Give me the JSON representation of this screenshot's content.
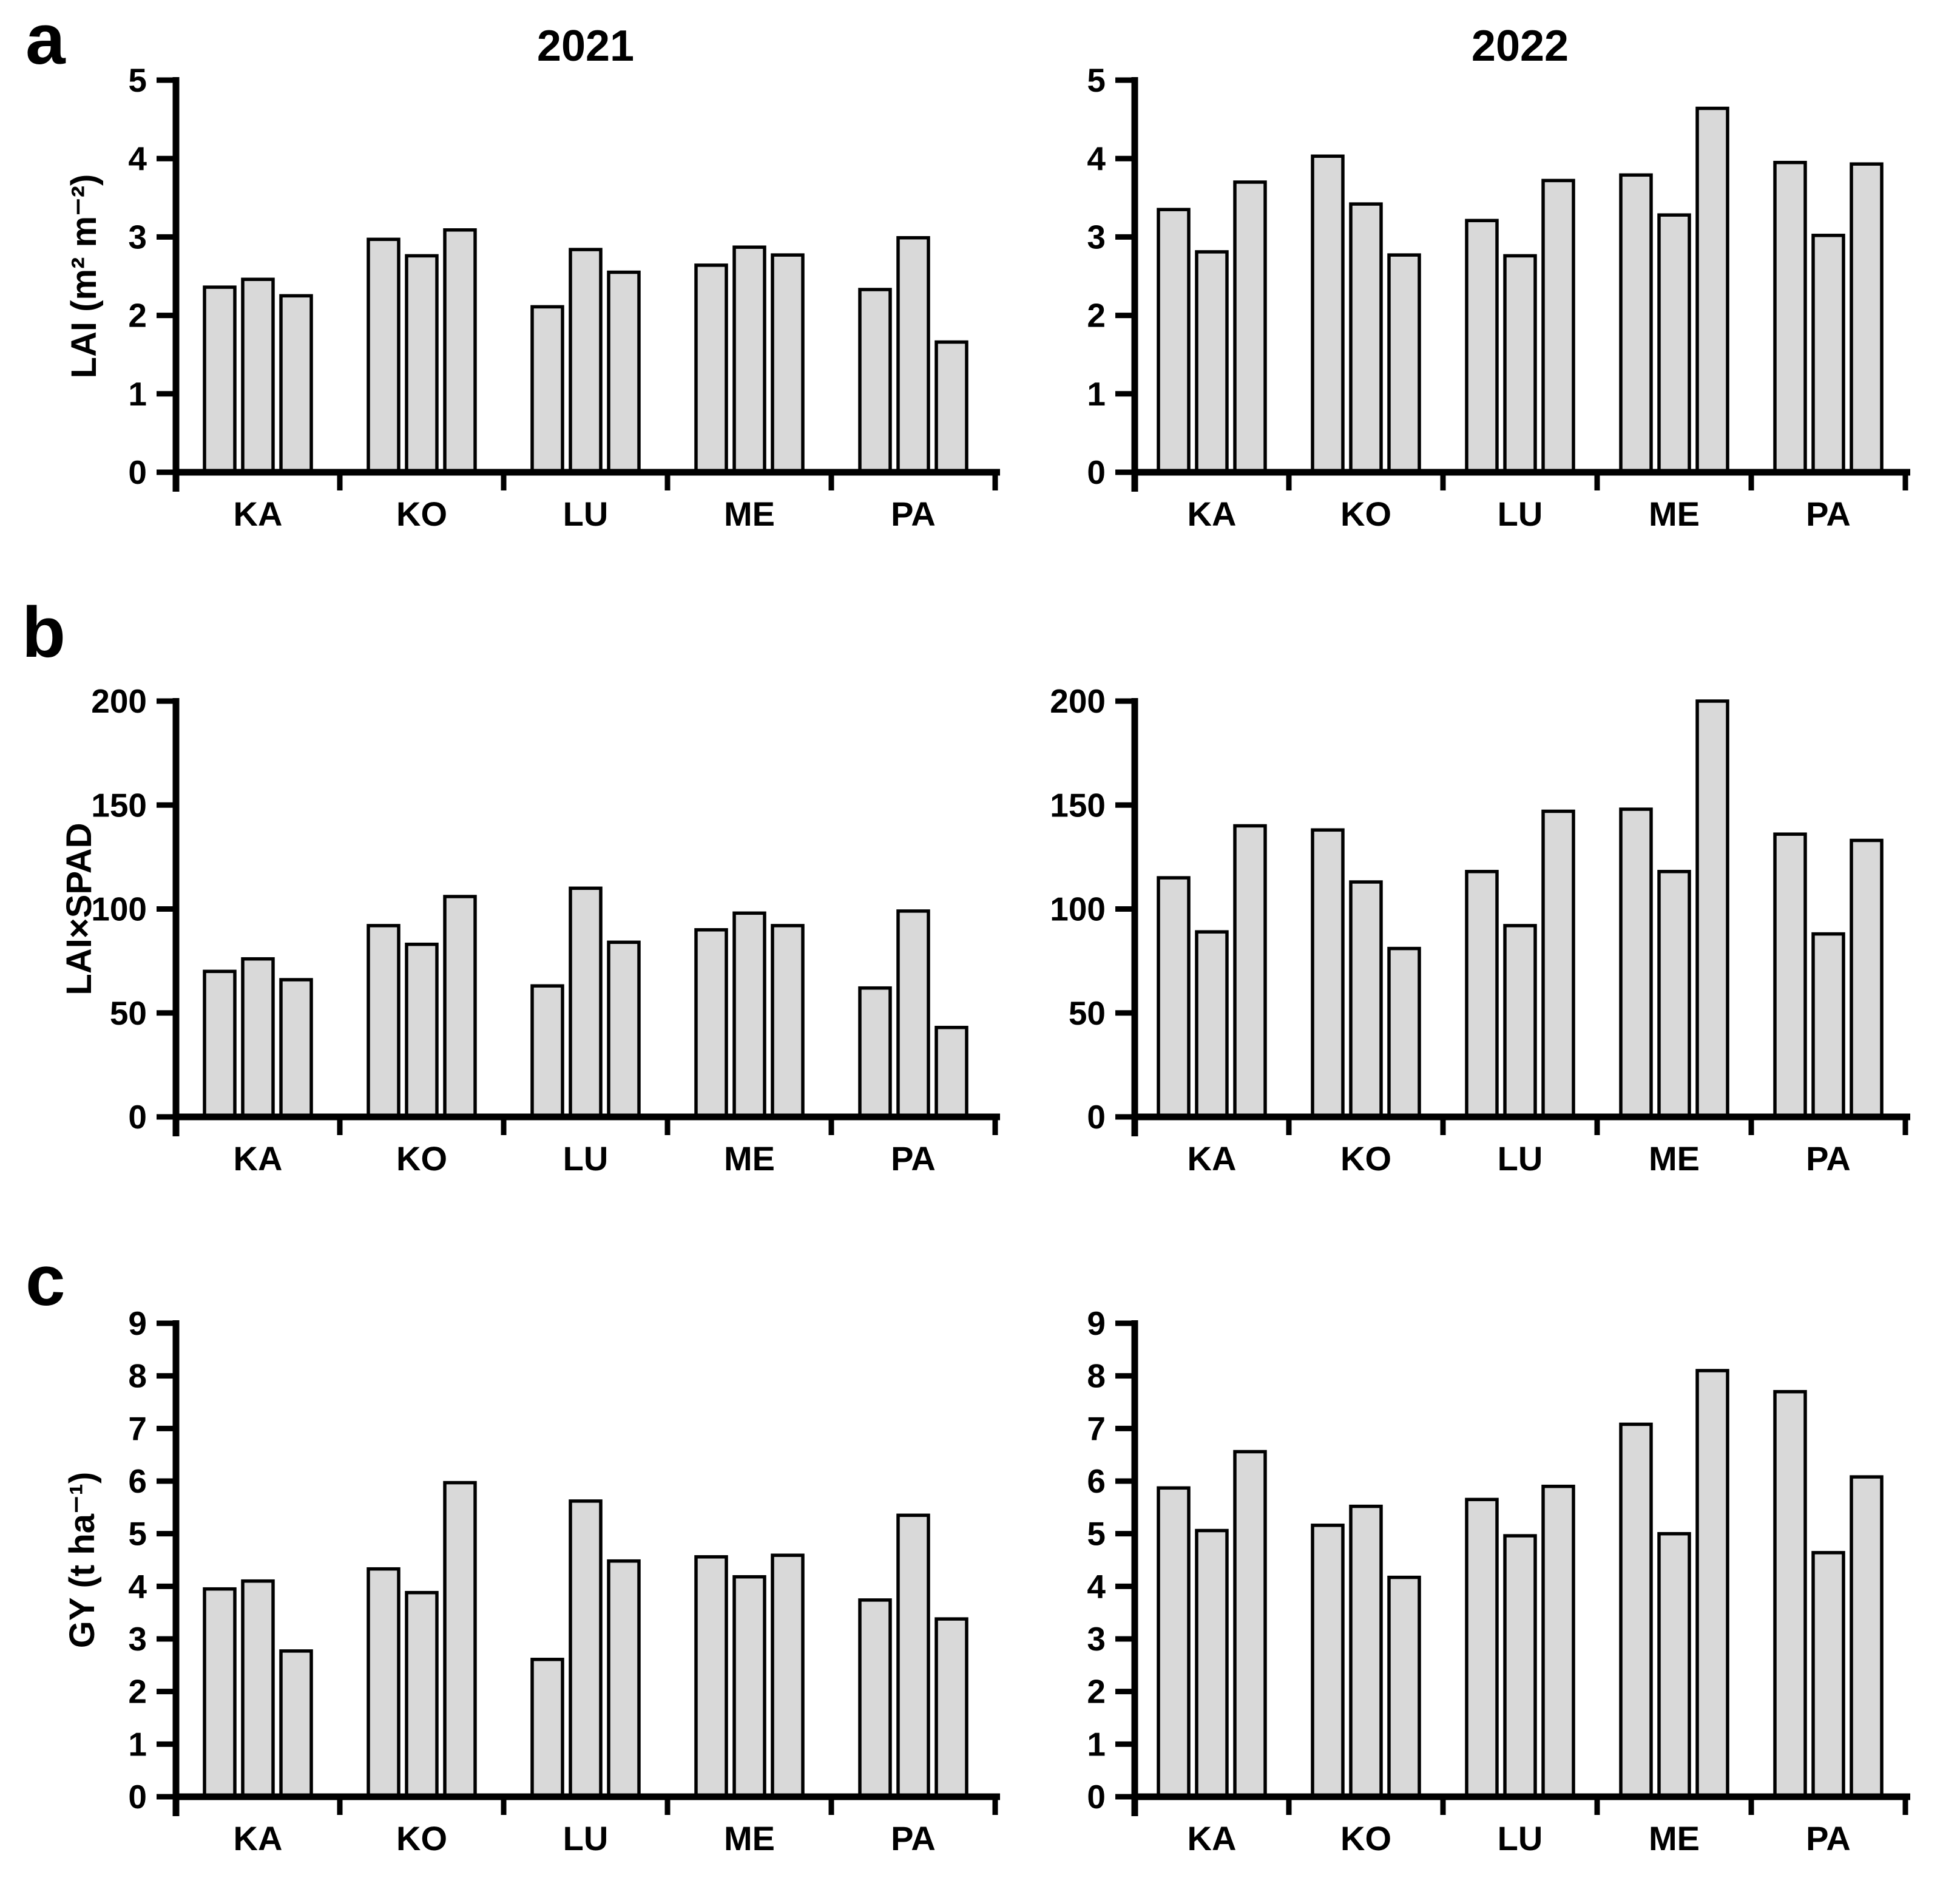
{
  "figure": {
    "background": "#ffffff",
    "bar_fill": "#d9d9d9",
    "bar_stroke": "#000000",
    "axis_color": "#000000",
    "text_color": "#000000"
  },
  "panels": [
    {
      "label": "a"
    },
    {
      "label": "b"
    },
    {
      "label": "c"
    }
  ],
  "columns": [
    {
      "title": "2021"
    },
    {
      "title": "2022"
    }
  ],
  "chart_data": [
    {
      "id": "lai-2021",
      "type": "bar",
      "panel": "a",
      "column": "2021",
      "title": "2021",
      "ylabel": "LAI (m² m⁻²)",
      "ylim": [
        0,
        5
      ],
      "yticks": [
        0,
        1,
        2,
        3,
        4,
        5
      ],
      "categories": [
        "KA",
        "KO",
        "LU",
        "ME",
        "PA"
      ],
      "bars_per_category": 3,
      "values": [
        [
          2.36,
          2.46,
          2.25
        ],
        [
          2.97,
          2.76,
          3.09
        ],
        [
          2.11,
          2.84,
          2.55
        ],
        [
          2.64,
          2.87,
          2.77
        ],
        [
          2.33,
          2.99,
          1.66
        ]
      ]
    },
    {
      "id": "lai-2022",
      "type": "bar",
      "panel": "a",
      "column": "2022",
      "title": "2022",
      "ylabel": "",
      "ylim": [
        0,
        5
      ],
      "yticks": [
        0,
        1,
        2,
        3,
        4,
        5
      ],
      "categories": [
        "KA",
        "KO",
        "LU",
        "ME",
        "PA"
      ],
      "bars_per_category": 3,
      "values": [
        [
          3.35,
          2.81,
          3.7
        ],
        [
          4.03,
          3.42,
          2.77
        ],
        [
          3.21,
          2.76,
          3.72
        ],
        [
          3.79,
          3.28,
          4.64
        ],
        [
          3.95,
          3.02,
          3.93
        ]
      ]
    },
    {
      "id": "laixspad-2021",
      "type": "bar",
      "panel": "b",
      "column": "2021",
      "title": "",
      "ylabel": "LAI×SPAD",
      "ylim": [
        0,
        200
      ],
      "yticks": [
        0,
        50,
        100,
        150,
        200
      ],
      "categories": [
        "KA",
        "KO",
        "LU",
        "ME",
        "PA"
      ],
      "bars_per_category": 3,
      "values": [
        [
          70,
          76,
          66
        ],
        [
          92,
          83,
          106
        ],
        [
          63,
          110,
          84
        ],
        [
          90,
          98,
          92
        ],
        [
          62,
          99,
          43
        ]
      ]
    },
    {
      "id": "laixspad-2022",
      "type": "bar",
      "panel": "b",
      "column": "2022",
      "title": "",
      "ylabel": "",
      "ylim": [
        0,
        200
      ],
      "yticks": [
        0,
        50,
        100,
        150,
        200
      ],
      "categories": [
        "KA",
        "KO",
        "LU",
        "ME",
        "PA"
      ],
      "bars_per_category": 3,
      "values": [
        [
          115,
          89,
          140
        ],
        [
          138,
          113,
          81
        ],
        [
          118,
          92,
          147
        ],
        [
          148,
          118,
          200
        ],
        [
          136,
          88,
          133
        ]
      ]
    },
    {
      "id": "gy-2021",
      "type": "bar",
      "panel": "c",
      "column": "2021",
      "title": "",
      "ylabel": "GY (t ha⁻¹)",
      "ylim": [
        0,
        9
      ],
      "yticks": [
        0,
        1,
        2,
        3,
        4,
        5,
        6,
        7,
        8,
        9
      ],
      "categories": [
        "KA",
        "KO",
        "LU",
        "ME",
        "PA"
      ],
      "bars_per_category": 3,
      "values": [
        [
          3.95,
          4.1,
          2.77
        ],
        [
          4.33,
          3.88,
          5.97
        ],
        [
          2.61,
          5.62,
          4.48
        ],
        [
          4.56,
          4.18,
          4.59
        ],
        [
          3.74,
          5.35,
          3.38
        ]
      ]
    },
    {
      "id": "gy-2022",
      "type": "bar",
      "panel": "c",
      "column": "2022",
      "title": "",
      "ylabel": "",
      "ylim": [
        0,
        9
      ],
      "yticks": [
        0,
        1,
        2,
        3,
        4,
        5,
        6,
        7,
        8,
        9
      ],
      "categories": [
        "KA",
        "KO",
        "LU",
        "ME",
        "PA"
      ],
      "bars_per_category": 3,
      "values": [
        [
          5.87,
          5.06,
          6.56
        ],
        [
          5.16,
          5.52,
          4.17
        ],
        [
          5.65,
          4.96,
          5.9
        ],
        [
          7.08,
          5.0,
          8.1
        ],
        [
          7.7,
          4.64,
          6.08
        ]
      ]
    }
  ]
}
